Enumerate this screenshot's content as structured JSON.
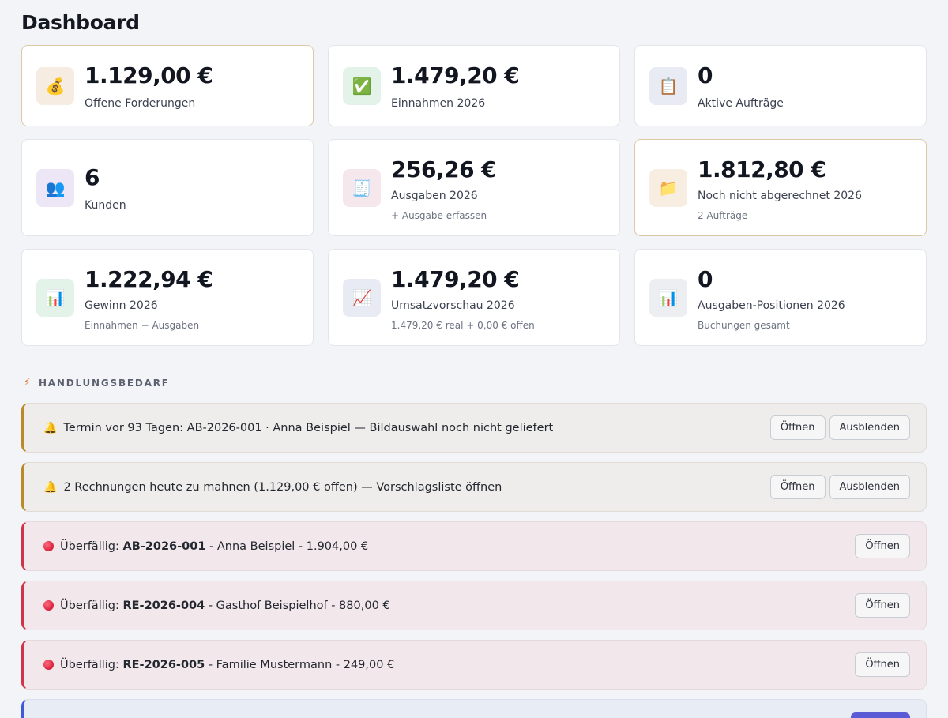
{
  "page": {
    "title": "Dashboard"
  },
  "cards": [
    {
      "value": "1.129,00 €",
      "label": "Offene Forderungen",
      "sub": "",
      "icon": "money-bag-icon",
      "glyph": "💰"
    },
    {
      "value": "1.479,20 €",
      "label": "Einnahmen 2026",
      "sub": "",
      "icon": "check-mark-icon",
      "glyph": "✅"
    },
    {
      "value": "0",
      "label": "Aktive Aufträge",
      "sub": "",
      "icon": "clipboard-icon",
      "glyph": "📋"
    },
    {
      "value": "6",
      "label": "Kunden",
      "sub": "",
      "icon": "people-icon",
      "glyph": "👥"
    },
    {
      "value": "256,26 €",
      "label": "Ausgaben 2026",
      "sub": "+ Ausgabe erfassen",
      "icon": "receipt-icon",
      "glyph": "🧾"
    },
    {
      "value": "1.812,80 €",
      "label": "Noch nicht abgerechnet 2026",
      "sub": "2 Aufträge",
      "icon": "folder-icon",
      "glyph": "📁"
    },
    {
      "value": "1.222,94 €",
      "label": "Gewinn 2026",
      "sub": "Einnahmen − Ausgaben",
      "icon": "bar-chart-icon",
      "glyph": "📊"
    },
    {
      "value": "1.479,20 €",
      "label": "Umsatzvorschau 2026",
      "sub": "1.479,20 € real + 0,00 € offen",
      "icon": "trend-chart-icon",
      "glyph": "📈"
    },
    {
      "value": "0",
      "label": "Ausgaben-Positionen 2026",
      "sub": "Buchungen gesamt",
      "icon": "bar-chart-icon",
      "glyph": "📊"
    }
  ],
  "section": {
    "title": "HANDLUNGSBEDARF",
    "icon": "lightning-icon",
    "glyph": "⚡"
  },
  "alerts": [
    {
      "glyph": "🔔",
      "text": "Termin vor 93 Tagen: AB-2026-001 · Anna Beispiel — Bildauswahl noch nicht geliefert",
      "open": "Öffnen",
      "hide": "Ausblenden"
    },
    {
      "glyph": "🔔",
      "text": "2 Rechnungen heute zu mahnen (1.129,00 € offen) — Vorschlagsliste öffnen",
      "open": "Öffnen",
      "hide": "Ausblenden"
    },
    {
      "prefix": "Überfällig: ",
      "ref": "AB-2026-001",
      "rest": " - Anna Beispiel - 1.904,00 €",
      "open": "Öffnen"
    },
    {
      "prefix": "Überfällig: ",
      "ref": "RE-2026-004",
      "rest": " - Gasthof Beispielhof - 880,00 €",
      "open": "Öffnen"
    },
    {
      "prefix": "Überfällig: ",
      "ref": "RE-2026-005",
      "rest": " - Familie Mustermann - 249,00 €",
      "open": "Öffnen"
    }
  ],
  "colors": {
    "accent": "#5b5bd6",
    "warning": "#b88a2c",
    "danger": "#d0344a"
  }
}
